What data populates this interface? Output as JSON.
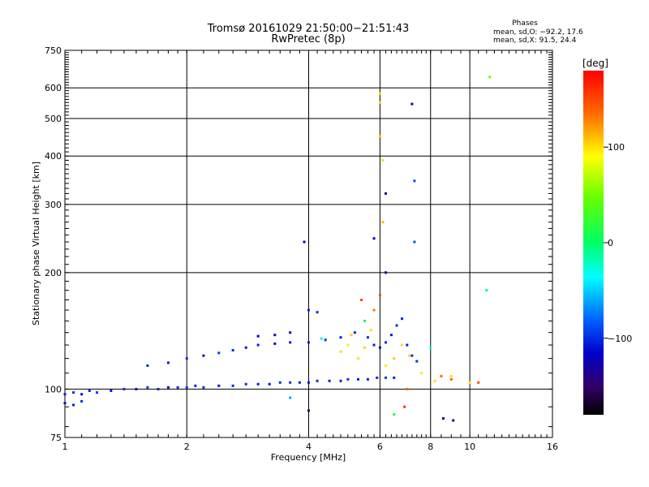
{
  "chart_data": {
    "type": "scatter",
    "title": "Tromsø 20161029 21:50:00−21:51:43",
    "subtitle": "RwPretec (8p)",
    "xlabel": "Frequency [MHz]",
    "ylabel": "Stationary phase Virtual Height [km]",
    "x_scale": "log",
    "y_scale": "log",
    "xlim": [
      1,
      16
    ],
    "ylim": [
      75,
      750
    ],
    "x_ticks": [
      1,
      2,
      4,
      6,
      8,
      10,
      16
    ],
    "x_tick_labels": [
      "1",
      "2",
      "4",
      "6",
      "8",
      "10",
      "16"
    ],
    "y_ticks": [
      75,
      100,
      200,
      300,
      400,
      500,
      600,
      750
    ],
    "y_tick_labels": [
      "75",
      "100",
      "200",
      "300",
      "400",
      "500",
      "600",
      "750"
    ],
    "grid": true,
    "stats": {
      "title": "Phases",
      "line1": "mean, sd,O: −92.2, 17.6",
      "line2": "mean, sd,X:  91.5, 24.4"
    },
    "colorbar": {
      "label": "[deg]",
      "range": [
        -180,
        180
      ],
      "ticks": [
        100,
        0,
        -100
      ],
      "tick_labels": [
        "100",
        "0",
        "−100"
      ]
    },
    "series": [
      {
        "points": [
          [
            1.0,
            97,
            -105
          ],
          [
            1.05,
            98,
            -98
          ],
          [
            1.1,
            97,
            -110
          ],
          [
            1.15,
            99,
            -100
          ],
          [
            1.2,
            98,
            -95
          ],
          [
            1.3,
            99,
            -105
          ],
          [
            1.4,
            100,
            -100
          ],
          [
            1.5,
            100,
            -108
          ],
          [
            1.6,
            101,
            -97
          ],
          [
            1.7,
            100,
            -102
          ],
          [
            1.8,
            101,
            -110
          ],
          [
            1.9,
            101,
            -100
          ],
          [
            2.0,
            101,
            -95
          ],
          [
            2.1,
            102,
            -104
          ],
          [
            2.2,
            101,
            -99
          ],
          [
            2.4,
            102,
            -106
          ],
          [
            2.6,
            102,
            -101
          ],
          [
            2.8,
            103,
            -97
          ],
          [
            3.0,
            103,
            -103
          ],
          [
            3.2,
            103,
            -108
          ],
          [
            3.4,
            104,
            -100
          ],
          [
            3.6,
            104,
            -95
          ],
          [
            3.8,
            104,
            -102
          ],
          [
            4.0,
            104,
            -106
          ],
          [
            4.2,
            105,
            -99
          ],
          [
            4.5,
            105,
            -104
          ],
          [
            4.8,
            105,
            -100
          ],
          [
            5.0,
            106,
            -97
          ],
          [
            5.3,
            106,
            -103
          ],
          [
            5.6,
            106,
            -101
          ],
          [
            5.9,
            107,
            -99
          ],
          [
            6.2,
            107,
            -95
          ],
          [
            6.5,
            107,
            -102
          ],
          [
            1.0,
            92,
            -110
          ],
          [
            1.05,
            91,
            -105
          ],
          [
            1.1,
            93,
            -100
          ]
        ]
      },
      {
        "points": [
          [
            1.6,
            115,
            -100
          ],
          [
            1.8,
            117,
            -105
          ],
          [
            2.0,
            120,
            -98
          ],
          [
            2.2,
            122,
            -110
          ],
          [
            2.4,
            124,
            -95
          ],
          [
            2.6,
            126,
            -100
          ],
          [
            2.8,
            128,
            -108
          ],
          [
            3.0,
            130,
            -102
          ],
          [
            3.3,
            131,
            -110
          ],
          [
            3.6,
            132,
            -104
          ],
          [
            4.0,
            132,
            -100
          ],
          [
            4.4,
            134,
            -96
          ],
          [
            4.8,
            136,
            -105
          ],
          [
            5.2,
            140,
            -101
          ],
          [
            5.6,
            136,
            -99
          ],
          [
            5.8,
            130,
            -103
          ],
          [
            6.0,
            128,
            -110
          ],
          [
            6.2,
            132,
            -100
          ],
          [
            6.4,
            138,
            -106
          ],
          [
            6.6,
            146,
            -98
          ],
          [
            6.8,
            152,
            -102
          ],
          [
            7.0,
            130,
            -104
          ],
          [
            7.2,
            122,
            -100
          ],
          [
            7.4,
            118,
            -96
          ],
          [
            3.0,
            137,
            -115
          ],
          [
            3.3,
            138,
            -112
          ],
          [
            3.6,
            140,
            -120
          ],
          [
            4.0,
            160,
            -100
          ],
          [
            4.2,
            158,
            -98
          ]
        ]
      },
      {
        "points": [
          [
            4.8,
            125,
            100
          ],
          [
            5.0,
            130,
            95
          ],
          [
            5.1,
            138,
            105
          ],
          [
            5.3,
            120,
            98
          ],
          [
            5.5,
            128,
            102
          ],
          [
            5.7,
            142,
            100
          ],
          [
            6.2,
            115,
            96
          ],
          [
            6.5,
            120,
            104
          ],
          [
            6.8,
            130,
            99
          ],
          [
            7.1,
            122,
            103
          ],
          [
            7.6,
            110,
            97
          ],
          [
            8.2,
            105,
            101
          ],
          [
            9.0,
            108,
            100
          ],
          [
            10.0,
            104,
            95
          ],
          [
            6.0,
            550,
            100
          ],
          [
            6.0,
            580,
            98
          ],
          [
            6.0,
            450,
            105
          ],
          [
            6.1,
            390,
            100
          ],
          [
            6.1,
            270,
            110
          ]
        ]
      },
      {
        "points": [
          [
            5.4,
            170,
            150
          ],
          [
            6.0,
            175,
            145
          ],
          [
            5.8,
            160,
            130
          ],
          [
            6.9,
            90,
            160
          ],
          [
            7.0,
            100,
            140
          ],
          [
            8.5,
            108,
            135
          ],
          [
            9.0,
            106,
            140
          ],
          [
            10.5,
            104,
            150
          ]
        ]
      },
      {
        "points": [
          [
            11.2,
            640,
            50
          ],
          [
            5.5,
            150,
            0
          ],
          [
            8.0,
            128,
            -30
          ],
          [
            6.5,
            86,
            20
          ],
          [
            11.0,
            180,
            -10
          ],
          [
            4.3,
            135,
            -40
          ],
          [
            3.6,
            95,
            -60
          ]
        ]
      },
      {
        "points": [
          [
            3.9,
            240,
            -120
          ],
          [
            5.8,
            245,
            -115
          ],
          [
            6.2,
            320,
            -130
          ],
          [
            7.2,
            545,
            -120
          ],
          [
            7.3,
            345,
            -90
          ],
          [
            7.3,
            240,
            -85
          ],
          [
            6.2,
            200,
            -125
          ],
          [
            4.0,
            88,
            -150
          ],
          [
            8.6,
            84,
            -140
          ],
          [
            9.1,
            83,
            -135
          ]
        ]
      }
    ]
  }
}
